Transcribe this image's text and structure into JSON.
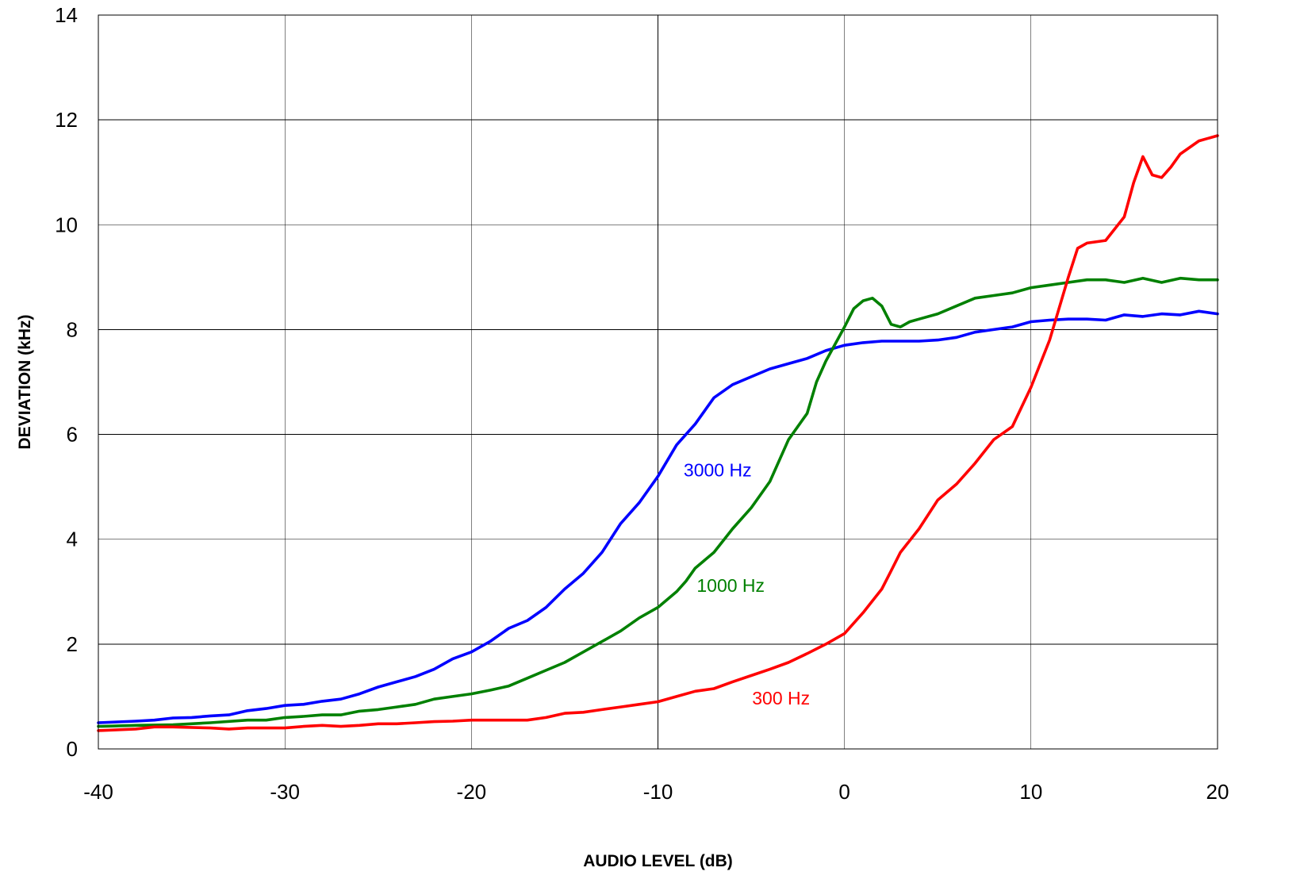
{
  "chart_data": {
    "type": "line",
    "xlabel": "AUDIO LEVEL (dB)",
    "ylabel": "DEVIATION (kHz)",
    "xlim": [
      -40,
      20
    ],
    "ylim": [
      0,
      14
    ],
    "x_ticks": [
      -40,
      -30,
      -20,
      -10,
      0,
      10,
      20
    ],
    "y_ticks": [
      0,
      2,
      4,
      6,
      8,
      10,
      12,
      14
    ],
    "grid": true,
    "legend": "inline labels next to curves",
    "series": [
      {
        "name": "3000 Hz",
        "color": "#0000ff",
        "x": [
          -40,
          -38,
          -37,
          -36,
          -35,
          -34,
          -33,
          -32,
          -31,
          -30,
          -29,
          -28,
          -27,
          -26,
          -25,
          -24,
          -23,
          -22,
          -21,
          -20,
          -19,
          -18,
          -17,
          -16,
          -15,
          -14,
          -13,
          -12,
          -11,
          -10,
          -9,
          -8,
          -7,
          -6,
          -5,
          -4,
          -3,
          -2,
          -1,
          0,
          1,
          2,
          3,
          4,
          5,
          6,
          7,
          8,
          9,
          10,
          11,
          12,
          13,
          14,
          15,
          16,
          17,
          18,
          19,
          20
        ],
        "y": [
          0.5,
          0.53,
          0.55,
          0.59,
          0.6,
          0.63,
          0.65,
          0.73,
          0.77,
          0.83,
          0.85,
          0.91,
          0.95,
          1.05,
          1.18,
          1.28,
          1.38,
          1.52,
          1.72,
          1.85,
          2.05,
          2.3,
          2.45,
          2.7,
          3.05,
          3.35,
          3.75,
          4.3,
          4.7,
          5.2,
          5.8,
          6.2,
          6.7,
          6.95,
          7.1,
          7.25,
          7.35,
          7.45,
          7.6,
          7.7,
          7.75,
          7.78,
          7.78,
          7.78,
          7.8,
          7.85,
          7.95,
          8.0,
          8.05,
          8.15,
          8.18,
          8.2,
          8.2,
          8.18,
          8.28,
          8.25,
          8.3,
          8.28,
          8.35,
          8.3
        ]
      },
      {
        "name": "1000 Hz",
        "color": "#008000",
        "x": [
          -40,
          -38,
          -36,
          -34,
          -32,
          -31,
          -30,
          -29,
          -28,
          -27,
          -26,
          -25,
          -24,
          -23,
          -22,
          -21,
          -20,
          -19,
          -18,
          -17,
          -16,
          -15,
          -14,
          -13,
          -12,
          -11,
          -10,
          -9,
          -8.5,
          -8,
          -7,
          -6,
          -5,
          -4,
          -3,
          -2,
          -1.5,
          -1,
          0,
          0.5,
          1,
          1.5,
          2,
          2.5,
          3,
          3.5,
          4,
          5,
          6,
          7,
          8,
          9,
          10,
          11,
          12,
          13,
          14,
          15,
          16,
          17,
          18,
          19,
          20
        ],
        "y": [
          0.43,
          0.45,
          0.46,
          0.5,
          0.55,
          0.55,
          0.6,
          0.62,
          0.65,
          0.65,
          0.72,
          0.75,
          0.8,
          0.85,
          0.95,
          1.0,
          1.05,
          1.12,
          1.2,
          1.35,
          1.5,
          1.65,
          1.85,
          2.05,
          2.25,
          2.5,
          2.7,
          3.0,
          3.2,
          3.45,
          3.75,
          4.2,
          4.6,
          5.1,
          5.9,
          6.4,
          7.0,
          7.4,
          8.05,
          8.4,
          8.55,
          8.6,
          8.45,
          8.1,
          8.05,
          8.15,
          8.2,
          8.3,
          8.45,
          8.6,
          8.65,
          8.7,
          8.8,
          8.85,
          8.9,
          8.95,
          8.95,
          8.9,
          8.98,
          8.9,
          8.98,
          8.95,
          8.95
        ]
      },
      {
        "name": "300 Hz",
        "color": "#ff0000",
        "x": [
          -40,
          -38,
          -37,
          -36,
          -34,
          -33,
          -32,
          -30,
          -29,
          -28,
          -27,
          -26,
          -25,
          -24,
          -23,
          -22,
          -21,
          -20,
          -19,
          -18,
          -17,
          -16,
          -15,
          -14,
          -13,
          -12,
          -11,
          -10,
          -9,
          -8,
          -7,
          -6,
          -5,
          -4,
          -3,
          -2,
          -1,
          0,
          1,
          2,
          2.5,
          3,
          4,
          5,
          6,
          7,
          8,
          9,
          10,
          11,
          12,
          12.5,
          13,
          14,
          15,
          15.5,
          16,
          16.5,
          17,
          17.5,
          18,
          19,
          20
        ],
        "y": [
          0.35,
          0.38,
          0.42,
          0.42,
          0.4,
          0.38,
          0.4,
          0.4,
          0.43,
          0.45,
          0.43,
          0.45,
          0.48,
          0.48,
          0.5,
          0.52,
          0.53,
          0.55,
          0.55,
          0.55,
          0.55,
          0.6,
          0.68,
          0.7,
          0.75,
          0.8,
          0.85,
          0.9,
          1.0,
          1.1,
          1.15,
          1.28,
          1.4,
          1.52,
          1.65,
          1.82,
          2.0,
          2.2,
          2.6,
          3.05,
          3.4,
          3.75,
          4.2,
          4.75,
          5.05,
          5.45,
          5.9,
          6.15,
          6.9,
          7.8,
          9.0,
          9.55,
          9.65,
          9.7,
          10.15,
          10.8,
          11.3,
          10.95,
          10.9,
          11.1,
          11.35,
          11.6,
          11.7
        ]
      }
    ],
    "annotations": [
      {
        "text": "3000 Hz",
        "color": "#0000ff",
        "x": -6.8,
        "y": 5.2
      },
      {
        "text": "1000 Hz",
        "color": "#008000",
        "x": -6.1,
        "y": 3.0
      },
      {
        "text": "300 Hz",
        "color": "#ff0000",
        "x": -3.4,
        "y": 0.85
      }
    ]
  }
}
